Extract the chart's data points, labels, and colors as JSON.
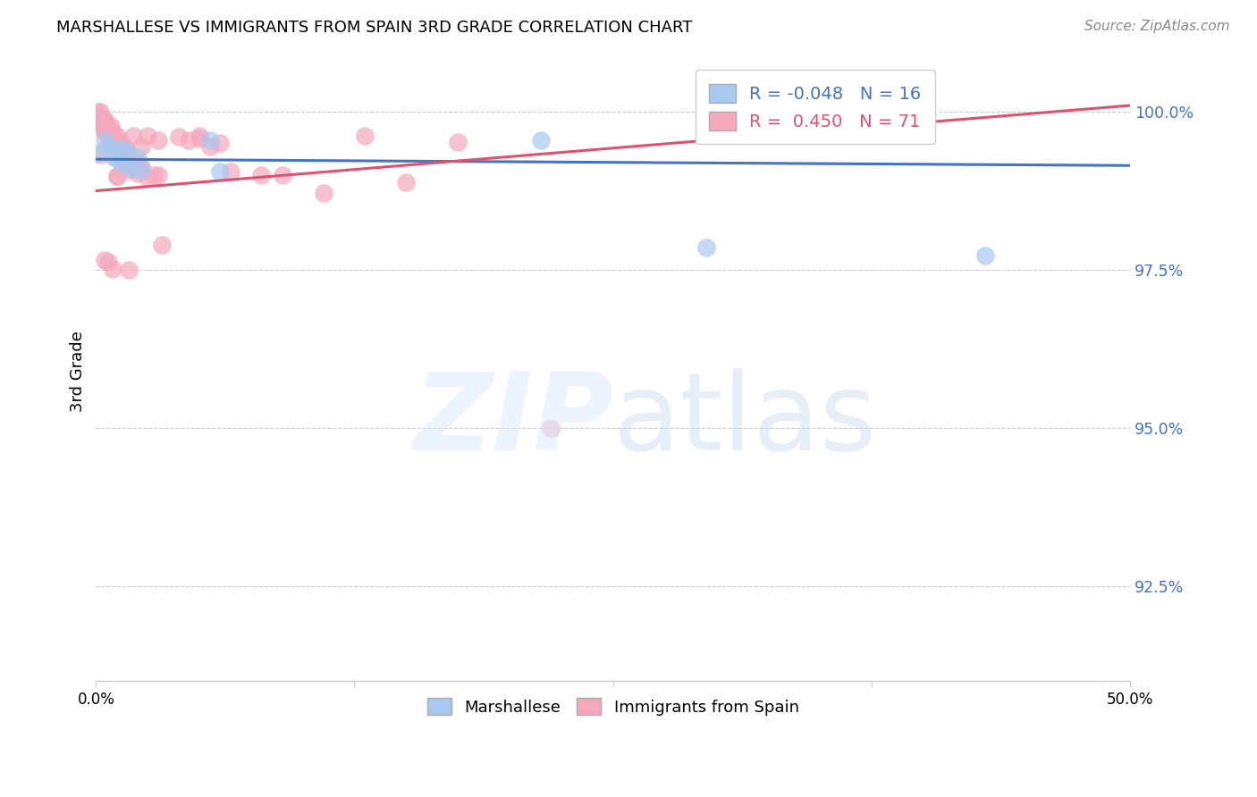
{
  "title": "MARSHALLESE VS IMMIGRANTS FROM SPAIN 3RD GRADE CORRELATION CHART",
  "source": "Source: ZipAtlas.com",
  "ylabel": "3rd Grade",
  "yticks": [
    92.5,
    95.0,
    97.5,
    100.0
  ],
  "ytick_labels": [
    "92.5%",
    "95.0%",
    "97.5%",
    "100.0%"
  ],
  "xlim": [
    0.0,
    0.5
  ],
  "ylim": [
    91.0,
    100.8
  ],
  "legend_blue_R": "-0.048",
  "legend_blue_N": "16",
  "legend_pink_R": "0.450",
  "legend_pink_N": "71",
  "blue_color": "#a8c8f0",
  "pink_color": "#f5a8bc",
  "blue_line_color": "#4472c4",
  "pink_line_color": "#e05070",
  "blue_scatter_x": [
    0.001,
    0.004,
    0.006,
    0.008,
    0.01,
    0.012,
    0.013,
    0.015,
    0.017,
    0.02,
    0.022,
    0.055,
    0.06,
    0.215,
    0.295,
    0.43
  ],
  "blue_scatter_y": [
    99.35,
    99.55,
    99.45,
    99.3,
    99.25,
    99.42,
    99.18,
    99.38,
    99.1,
    99.28,
    99.08,
    99.55,
    99.05,
    99.55,
    97.85,
    97.72
  ],
  "pink_scatter_x": [
    0.001,
    0.001,
    0.002,
    0.002,
    0.003,
    0.003,
    0.004,
    0.004,
    0.005,
    0.005,
    0.005,
    0.006,
    0.006,
    0.007,
    0.007,
    0.008,
    0.008,
    0.009,
    0.009,
    0.01,
    0.01,
    0.011,
    0.011,
    0.012,
    0.012,
    0.013,
    0.013,
    0.014,
    0.015,
    0.015,
    0.016,
    0.016,
    0.017,
    0.018,
    0.019,
    0.02,
    0.021,
    0.022,
    0.025,
    0.028,
    0.03,
    0.032,
    0.04,
    0.045,
    0.05,
    0.055,
    0.06,
    0.065,
    0.08,
    0.09,
    0.11,
    0.13,
    0.15,
    0.175,
    0.01,
    0.003,
    0.002,
    0.01,
    0.014,
    0.006,
    0.008,
    0.02,
    0.05,
    0.018,
    0.025,
    0.007,
    0.004,
    0.016,
    0.03,
    0.022,
    0.22
  ],
  "pink_scatter_y": [
    100.0,
    99.95,
    100.0,
    99.85,
    99.9,
    99.78,
    99.88,
    99.72,
    99.82,
    99.68,
    99.78,
    99.62,
    99.72,
    99.78,
    99.62,
    99.68,
    99.55,
    99.58,
    99.48,
    99.62,
    99.45,
    99.52,
    99.38,
    99.42,
    99.52,
    99.38,
    99.22,
    99.42,
    99.18,
    99.32,
    99.28,
    99.08,
    99.22,
    99.18,
    99.12,
    99.02,
    99.1,
    99.12,
    98.95,
    99.0,
    99.0,
    97.9,
    99.6,
    99.55,
    99.58,
    99.45,
    99.5,
    99.05,
    99.0,
    99.0,
    98.72,
    99.62,
    98.88,
    99.52,
    98.98,
    99.72,
    99.32,
    98.98,
    99.18,
    97.62,
    97.52,
    99.18,
    99.62,
    99.62,
    99.62,
    99.55,
    97.65,
    97.5,
    99.55,
    99.45,
    95.0
  ],
  "blue_line_x": [
    0.0,
    0.5
  ],
  "blue_line_y": [
    99.25,
    99.15
  ],
  "pink_line_x": [
    0.0,
    0.5
  ],
  "pink_line_y": [
    98.75,
    100.1
  ],
  "grid_color": "#cccccc",
  "spine_color": "#cccccc"
}
